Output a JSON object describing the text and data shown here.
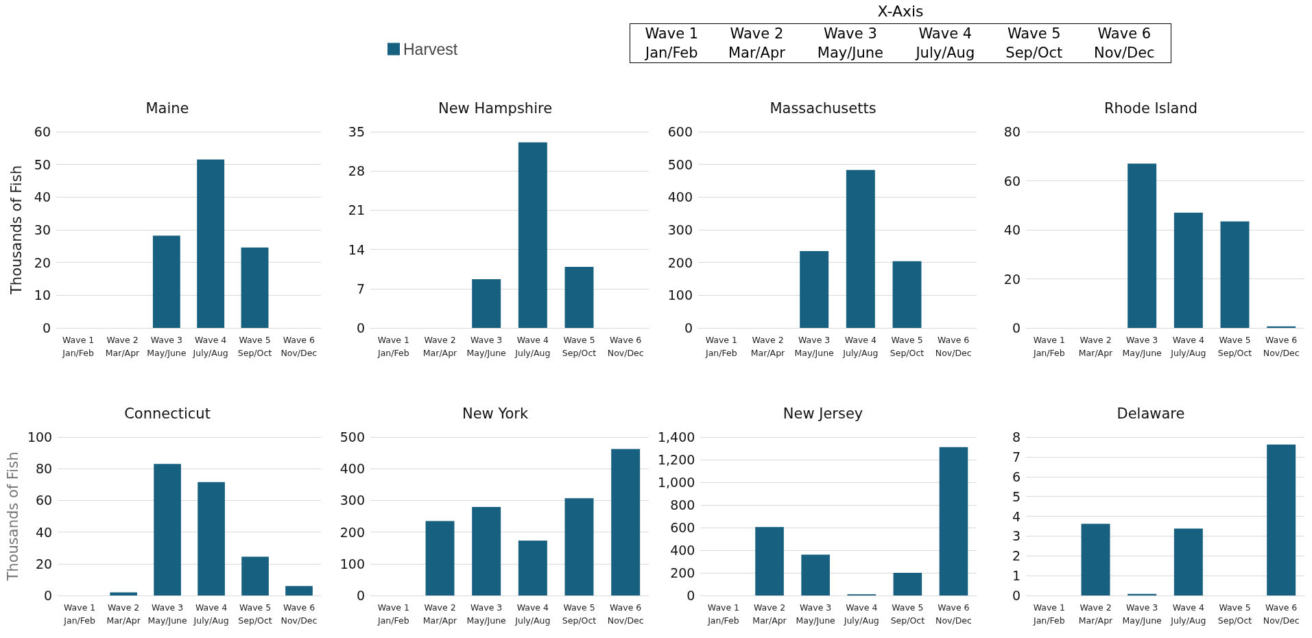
{
  "chart_data": [
    {
      "type": "bar",
      "title": "Maine",
      "ylabel": "Thousands of Fish",
      "categories": [
        "Wave 1\nJan/Feb",
        "Wave 2\nMar/Apr",
        "Wave 3\nMay/June",
        "Wave 4\nJuly/Aug",
        "Wave 5\nSep/Oct",
        "Wave 6\nNov/Dec"
      ],
      "series": [
        {
          "name": "Harvest",
          "color": "#17607f",
          "values": [
            0,
            0,
            28.2,
            51.5,
            24.6,
            0
          ]
        }
      ],
      "ylim": [
        0,
        60
      ],
      "yticks": [
        0,
        10,
        20,
        30,
        40,
        50,
        60
      ],
      "grid": "y",
      "legend": "top"
    },
    {
      "type": "bar",
      "title": "New Hampshire",
      "categories": [
        "Wave 1\nJan/Feb",
        "Wave 2\nMar/Apr",
        "Wave 3\nMay/June",
        "Wave 4\nJuly/Aug",
        "Wave 5\nSep/Oct",
        "Wave 6\nNov/Dec"
      ],
      "series": [
        {
          "color": "#17607f",
          "values": [
            0,
            0,
            8.7,
            33.1,
            10.9,
            0
          ]
        }
      ],
      "ylim": [
        0,
        35
      ],
      "yticks": [
        0,
        7,
        14,
        21,
        28,
        35
      ],
      "grid": "y"
    },
    {
      "type": "bar",
      "title": "Massachusetts",
      "categories": [
        "Wave 1\nJan/Feb",
        "Wave 2\nMar/Apr",
        "Wave 3\nMay/June",
        "Wave 4\nJuly/Aug",
        "Wave 5\nSep/Oct",
        "Wave 6\nNov/Dec"
      ],
      "series": [
        {
          "color": "#17607f",
          "values": [
            0,
            0,
            235,
            483,
            204,
            null
          ]
        }
      ],
      "ylim": [
        0,
        600
      ],
      "yticks": [
        0,
        100,
        200,
        300,
        400,
        500,
        600
      ],
      "grid": "y"
    },
    {
      "type": "bar",
      "title": "Rhode Island",
      "categories": [
        "Wave 1\nJan/Feb",
        "Wave 2\nMar/Apr",
        "Wave 3\nMay/June",
        "Wave 4\nJuly/Aug",
        "Wave 5\nSep/Oct",
        "Wave 6\nNov/Dec"
      ],
      "series": [
        {
          "color": "#17607f",
          "values": [
            0,
            0,
            67,
            47,
            43.4,
            0.6
          ]
        }
      ],
      "ylim": [
        0,
        80
      ],
      "yticks": [
        0,
        20,
        40,
        60,
        80
      ],
      "grid": "y"
    },
    {
      "type": "bar",
      "title": "Connecticut",
      "ylabel": "Thousands of Fish",
      "categories": [
        "Wave 1\nJan/Feb",
        "Wave 2\nMar/Apr",
        "Wave 3\nMay/June",
        "Wave 4\nJuly/Aug",
        "Wave 5\nSep/Oct",
        "Wave 6\nNov/Dec"
      ],
      "series": [
        {
          "color": "#17607f",
          "values": [
            0,
            2,
            83,
            71.5,
            24.5,
            6
          ]
        }
      ],
      "ylim": [
        0,
        100
      ],
      "yticks": [
        0,
        20,
        40,
        60,
        80,
        100
      ],
      "grid": "y"
    },
    {
      "type": "bar",
      "title": "New York",
      "categories": [
        "Wave 1\nJan/Feb",
        "Wave 2\nMar/Apr",
        "Wave 3\nMay/June",
        "Wave 4\nJuly/Aug",
        "Wave 5\nSep/Oct",
        "Wave 6\nNov/Dec"
      ],
      "series": [
        {
          "color": "#17607f",
          "values": [
            0,
            235,
            279,
            173,
            307,
            462
          ]
        }
      ],
      "ylim": [
        0,
        500
      ],
      "yticks": [
        0,
        100,
        200,
        300,
        400,
        500
      ],
      "grid": "y"
    },
    {
      "type": "bar",
      "title": "New Jersey",
      "categories": [
        "Wave 1\nJan/Feb",
        "Wave 2\nMar/Apr",
        "Wave 3\nMay/June",
        "Wave 4\nJuly/Aug",
        "Wave 5\nSep/Oct",
        "Wave 6\nNov/Dec"
      ],
      "series": [
        {
          "color": "#17607f",
          "values": [
            0,
            605,
            360,
            10,
            200,
            1310
          ]
        }
      ],
      "ylim": [
        0,
        1400
      ],
      "yticks": [
        0,
        200,
        400,
        600,
        800,
        {
          "value": 1000,
          "label": "1,000"
        },
        {
          "value": 1200,
          "label": "1,200"
        },
        {
          "value": 1400,
          "label": "1,400"
        }
      ],
      "grid": "y"
    },
    {
      "type": "bar",
      "title": "Delaware",
      "categories": [
        "Wave 1\nJan/Feb",
        "Wave 2\nMar/Apr",
        "Wave 3\nMay/June",
        "Wave 4\nJuly/Aug",
        "Wave 5\nSep/Oct",
        "Wave 6\nNov/Dec"
      ],
      "series": [
        {
          "color": "#17607f",
          "values": [
            0,
            3.62,
            0.08,
            3.38,
            0,
            7.62
          ]
        }
      ],
      "ylim": [
        0,
        8
      ],
      "yticks": [
        0,
        1,
        2,
        3,
        4,
        5,
        6,
        7,
        8
      ],
      "grid": "y"
    },
    {
      "type": "other",
      "title": "X-Axis",
      "annotations": [
        "Wave 1",
        "Wave 2",
        "Wave 3",
        "Wave 4",
        "Wave 5",
        "Wave 6",
        "Jan/Feb",
        "Mar/Apr",
        "May/June",
        "July/Aug",
        "Sep/Oct",
        "Nov/Dec"
      ]
    }
  ]
}
